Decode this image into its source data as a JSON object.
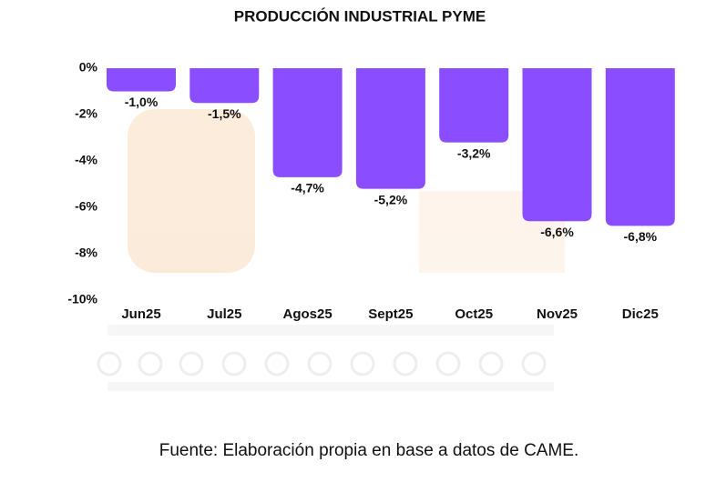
{
  "chart_data": {
    "type": "bar",
    "title": "PRODUCCIÓN INDUSTRIAL PYME",
    "categories": [
      "Jun25",
      "Jul25",
      "Agos25",
      "Sept25",
      "Oct25",
      "Nov25",
      "Dic25"
    ],
    "values": [
      -1.0,
      -1.5,
      -4.7,
      -5.2,
      -3.2,
      -6.6,
      -6.8
    ],
    "value_labels": [
      "-1,0%",
      "-1,5%",
      "-4,7%",
      "-5,2%",
      "-3,2%",
      "-6,6%",
      "-6,8%"
    ],
    "color": "#8a4dff",
    "ylim": [
      -10,
      0
    ],
    "yticks": [
      {
        "value": 0,
        "label": "0%"
      },
      {
        "value": -2,
        "label": "-2%"
      },
      {
        "value": -4,
        "label": "-4%"
      },
      {
        "value": -6,
        "label": "-6%"
      },
      {
        "value": -8,
        "label": "-8%"
      },
      {
        "value": -10,
        "label": "-10%"
      }
    ],
    "grid": false,
    "source": "Fuente: Elaboración propia en base a datos de CAME."
  }
}
